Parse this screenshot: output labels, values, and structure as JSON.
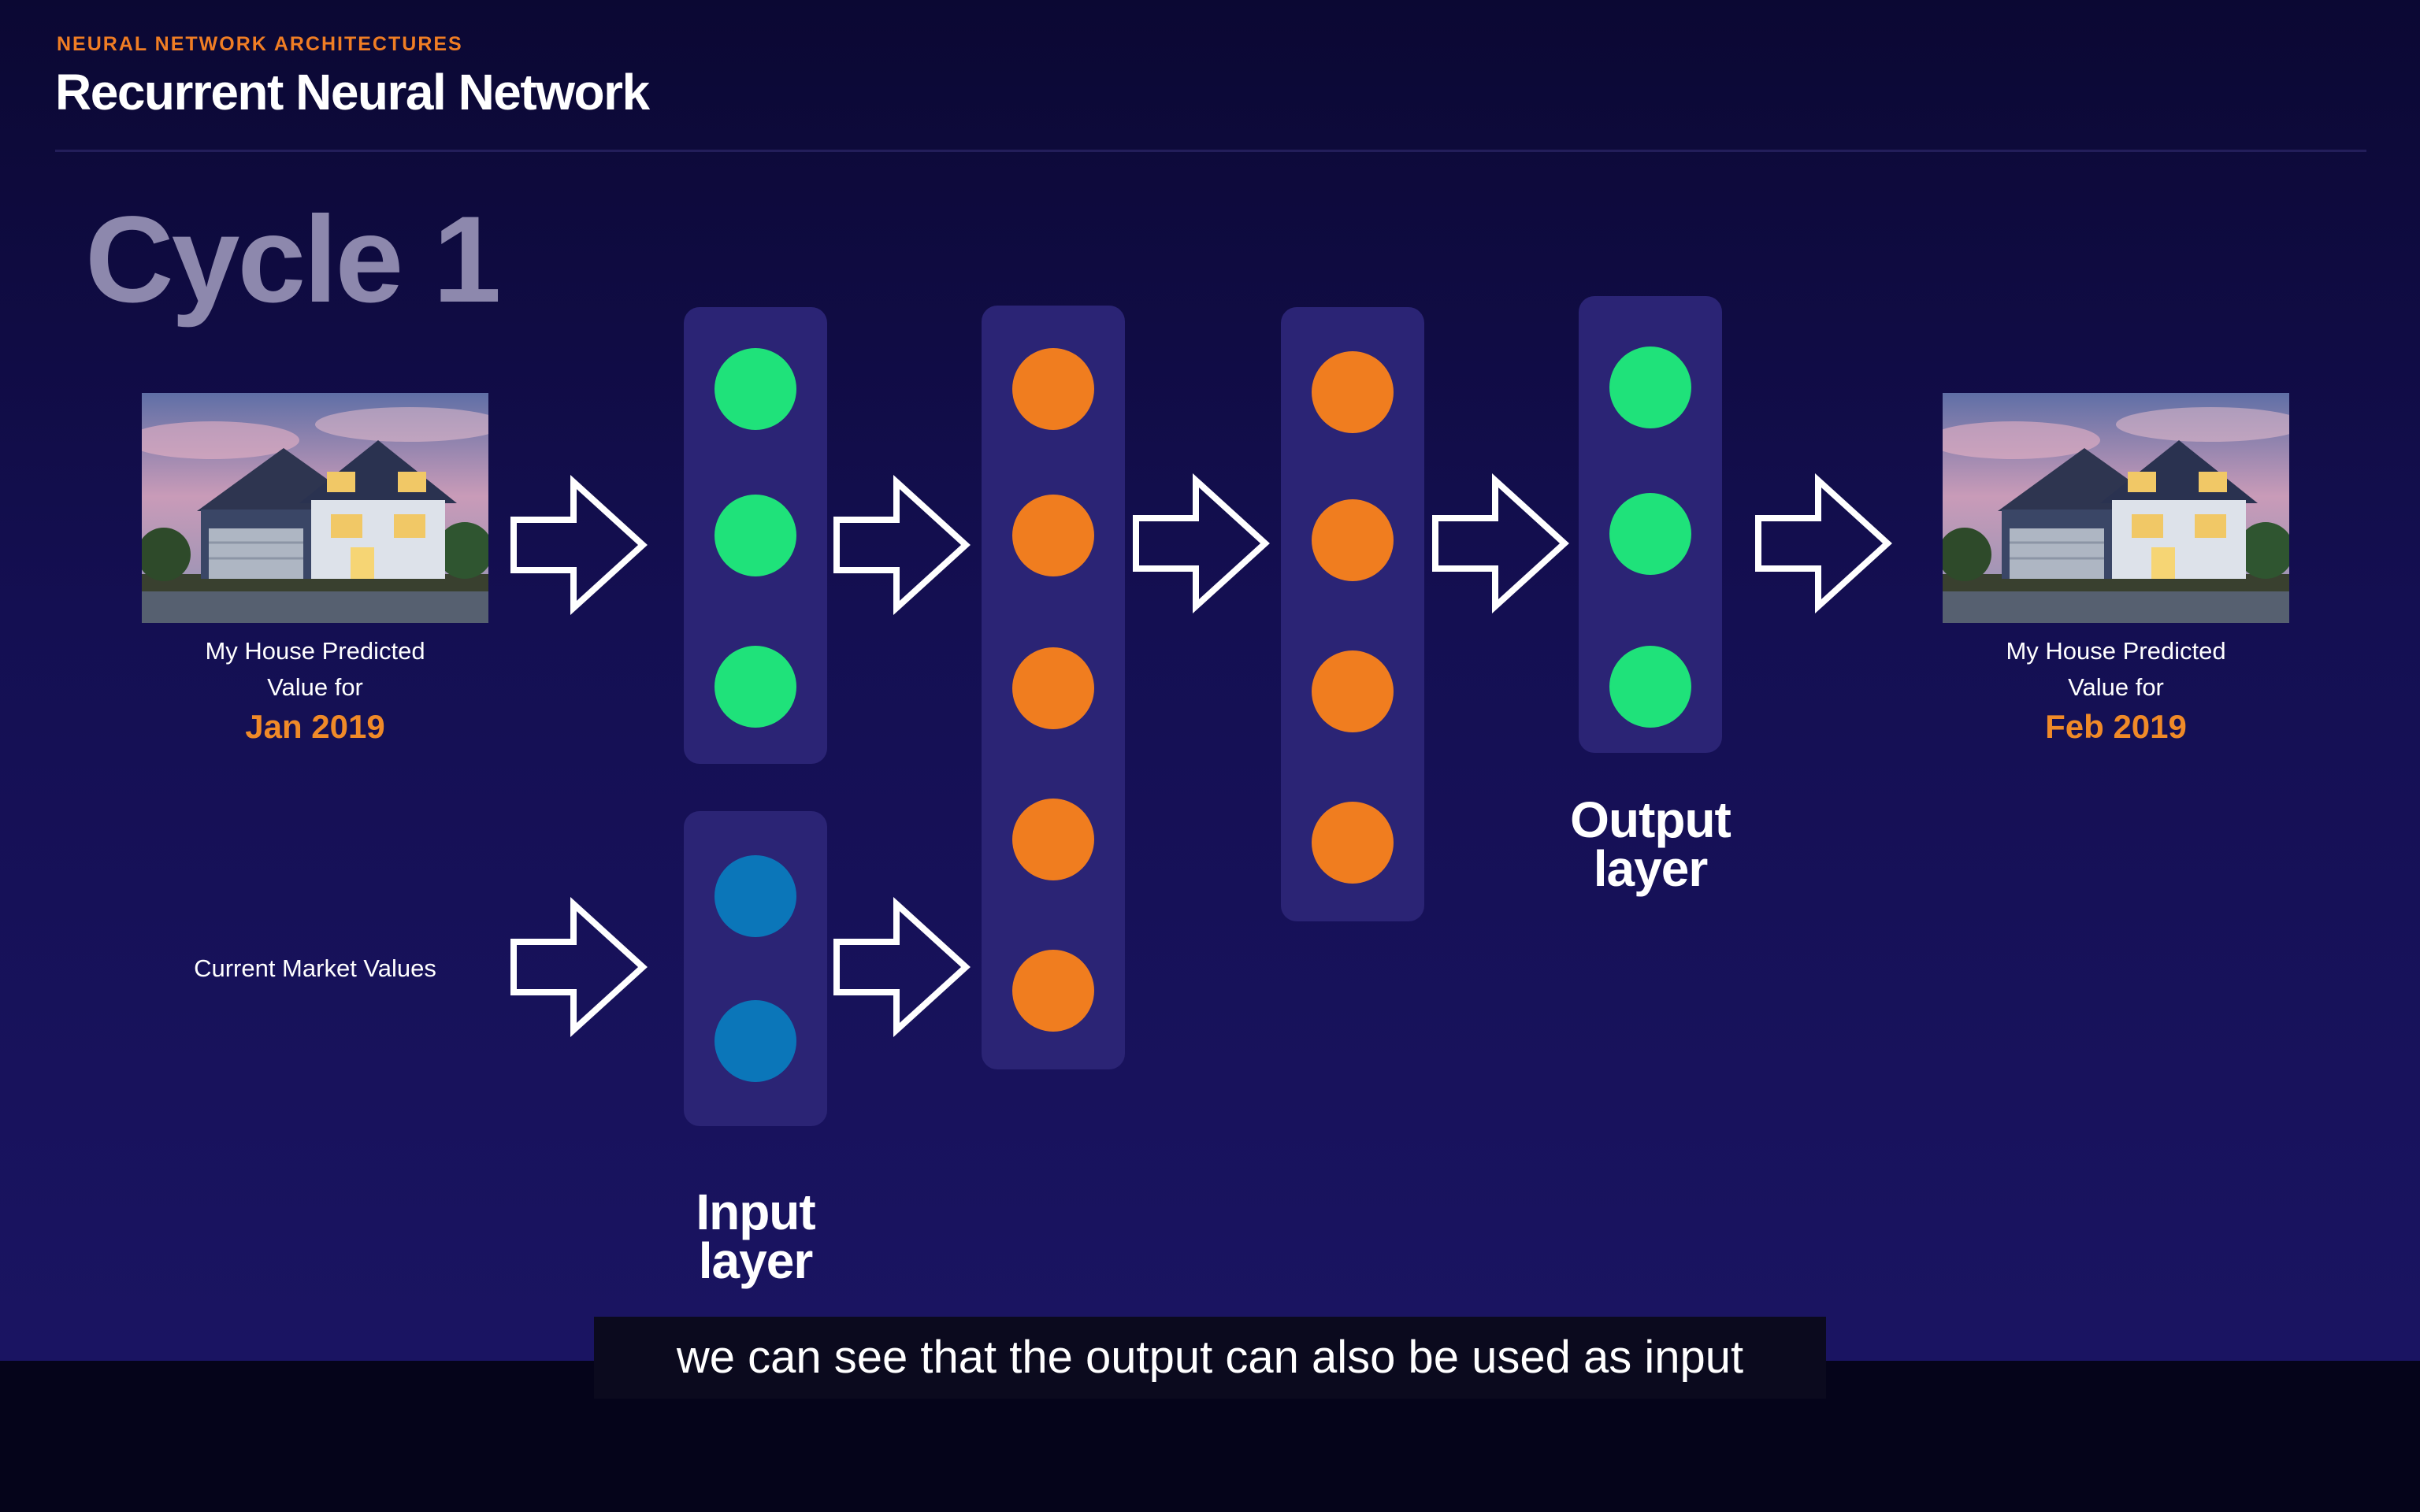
{
  "header": {
    "kicker": "NEURAL NETWORK ARCHITECTURES",
    "title": "Recurrent Neural Network"
  },
  "cycle_label": "Cycle 1",
  "input_house": {
    "caption_line1": "My House Predicted",
    "caption_line2": "Value for",
    "date": "Jan 2019"
  },
  "output_house": {
    "caption_line1": "My House Predicted",
    "caption_line2": "Value for",
    "date": "Feb 2019"
  },
  "market_label": "Current Market Values",
  "input_layer_label": {
    "line1": "Input",
    "line2": "layer"
  },
  "output_layer_label": {
    "line1": "Output",
    "line2": "layer"
  },
  "layers": [
    {
      "name": "input-top",
      "nodes": 3,
      "color": "#1fe27a"
    },
    {
      "name": "input-bottom",
      "nodes": 2,
      "color": "#0b76b9"
    },
    {
      "name": "hidden-1",
      "nodes": 5,
      "color": "#f07d1f"
    },
    {
      "name": "hidden-2",
      "nodes": 4,
      "color": "#f07d1f"
    },
    {
      "name": "output",
      "nodes": 3,
      "color": "#1fe27a"
    }
  ],
  "colors": {
    "accent_orange": "#f07d24",
    "node_green": "#1fe27a",
    "node_orange": "#f07d1f",
    "node_blue": "#0b76b9",
    "layer_panel": "#2b2475"
  },
  "subtitle": "we can see that the output can also be used as input"
}
